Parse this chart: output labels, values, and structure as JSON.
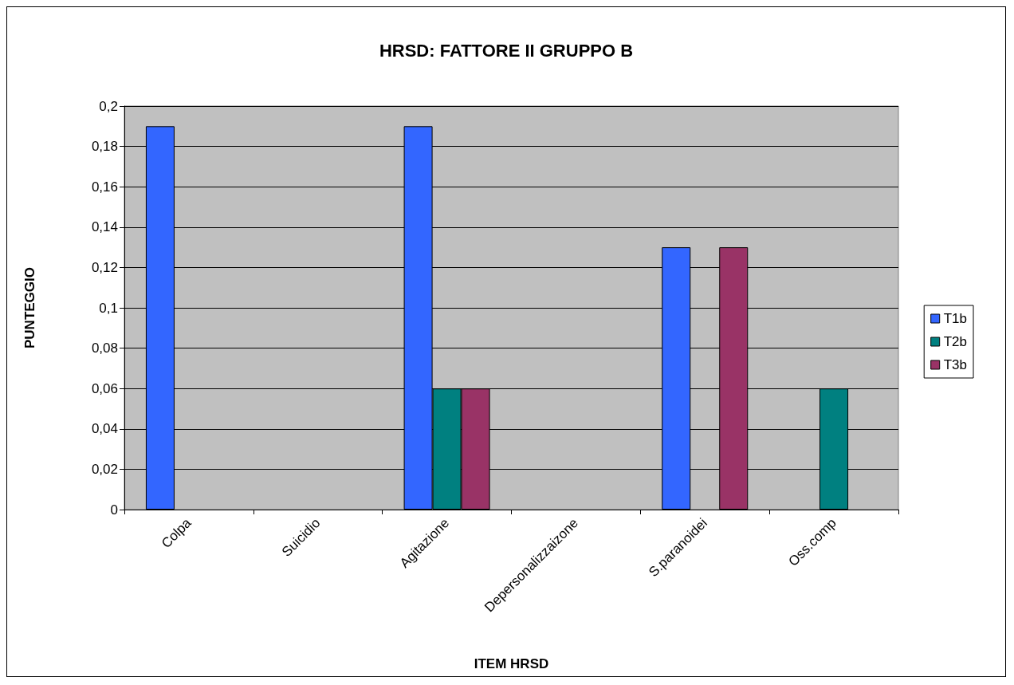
{
  "chart_data": {
    "type": "bar",
    "title": "HRSD: FATTORE II GRUPPO B",
    "xlabel": "ITEM HRSD",
    "ylabel": "PUNTEGGIO",
    "categories": [
      "Colpa",
      "Suicidio",
      "Agitazione",
      "Depersonalizzaizone",
      "S.paranoidei",
      "Oss.comp"
    ],
    "series": [
      {
        "name": "T1b",
        "color": "#3366ff",
        "values": [
          0.19,
          0,
          0.19,
          0,
          0.13,
          0
        ]
      },
      {
        "name": "T2b",
        "color": "#008080",
        "values": [
          0,
          0,
          0.06,
          0,
          0,
          0.06
        ]
      },
      {
        "name": "T3b",
        "color": "#993366",
        "values": [
          0,
          0,
          0.06,
          0,
          0.13,
          0
        ]
      }
    ],
    "ylim": [
      0,
      0.2
    ],
    "yticks": [
      {
        "value": 0,
        "label": "0"
      },
      {
        "value": 0.02,
        "label": "0,02"
      },
      {
        "value": 0.04,
        "label": "0,04"
      },
      {
        "value": 0.06,
        "label": "0,06"
      },
      {
        "value": 0.08,
        "label": "0,08"
      },
      {
        "value": 0.1,
        "label": "0,1"
      },
      {
        "value": 0.12,
        "label": "0,12"
      },
      {
        "value": 0.14,
        "label": "0,14"
      },
      {
        "value": 0.16,
        "label": "0,16"
      },
      {
        "value": 0.18,
        "label": "0,18"
      },
      {
        "value": 0.2,
        "label": "0,2"
      }
    ],
    "grid": "y",
    "legend": "right"
  }
}
